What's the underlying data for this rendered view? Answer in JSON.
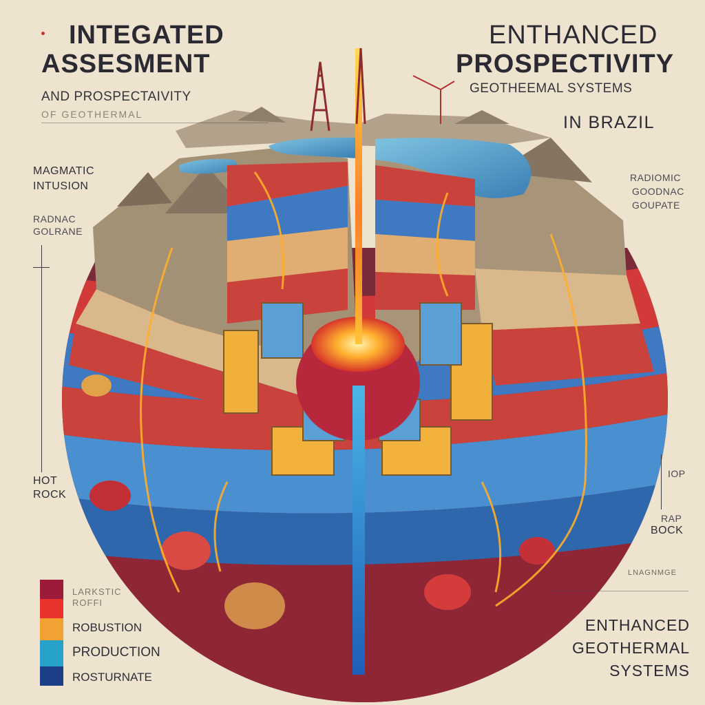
{
  "header_left": {
    "title_line1": "INTEGATED",
    "title_line2": "ASSESMENT",
    "subtitle": "AND PROSPECTAIVITY",
    "faded_line": "OF GEOTHERMAL"
  },
  "header_right": {
    "title_line1": "ENTHANCED",
    "title_line2": "PROSPECTIVITY",
    "subtitle": "GEOTHEEMAL SYSTEMS",
    "location": "IN BRAZIL"
  },
  "left_labels": {
    "magmatic_1": "MAGMATIC",
    "magmatic_2": "INTUSION",
    "faded_1": "RADNAC",
    "faded_2": "GOLRANE",
    "hot_1": "HOT",
    "hot_2": "ROCK"
  },
  "right_labels": {
    "radio_1": "RADIOMIC",
    "radio_2": "GOODNAC",
    "radio_3": "GOUPATE",
    "iop": "IOP",
    "rap": "RAP",
    "bock": "BOCK",
    "faded": "LNAGNMGE"
  },
  "legend": {
    "faded_1": "LARKSTIC",
    "faded_2": "ROFFI",
    "item1": "ROBUSTION",
    "item2": "PRODUCTION",
    "item3": "ROSTURNATE",
    "colors": [
      "#9c1b3a",
      "#e8322b",
      "#f2a233",
      "#27a3c9",
      "#1c3e86"
    ]
  },
  "footer": {
    "line1": "ENTHANCED",
    "line2": "GEOTHERMAL",
    "line3": "SYSTEMS"
  },
  "colors": {
    "background": "#ede3cf",
    "magma": "#ffb43c",
    "red_layer": "#d23a3a",
    "blue_layer": "#3f79c2",
    "tan_layer": "#d9b88c"
  }
}
